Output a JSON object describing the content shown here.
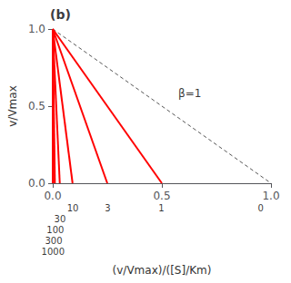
{
  "chart_data": {
    "type": "line",
    "title": "(b)",
    "xlabel": "(v/Vmax)/([S]/Km)",
    "ylabel": "v/Vmax",
    "xlim": [
      0,
      1.0
    ],
    "ylim": [
      0,
      1.0
    ],
    "xticks": [
      {
        "value": 0,
        "label": "0.0"
      },
      {
        "value": 0.5,
        "label": "0.5"
      },
      {
        "value": 1.0,
        "label": "1.0"
      }
    ],
    "yticks": [
      {
        "value": 0,
        "label": "0.0"
      },
      {
        "value": 0.5,
        "label": "0.5"
      },
      {
        "value": 1.0,
        "label": "1.0"
      }
    ],
    "grid": false,
    "series": [
      {
        "type": "line",
        "color": "#FF0000",
        "line_style": "solid",
        "marker": "none",
        "x": [
          0.0,
          0.0
        ],
        "values": [
          1.0,
          0.0
        ]
      },
      {
        "type": "line",
        "color": "#FF0000",
        "line_style": "solid",
        "marker": "none",
        "x": [
          0.0,
          0.5
        ],
        "values": [
          1.0,
          0.0
        ]
      },
      {
        "type": "line",
        "color": "#FF0000",
        "line_style": "solid",
        "marker": "none",
        "x": [
          0.0,
          0.25
        ],
        "values": [
          1.0,
          0.0
        ]
      },
      {
        "type": "line",
        "color": "#FF0000",
        "line_style": "solid",
        "marker": "none",
        "x": [
          0.0,
          0.09090909090909091
        ],
        "values": [
          1.0,
          0.0
        ]
      },
      {
        "type": "line",
        "color": "#FF0000",
        "line_style": "solid",
        "marker": "none",
        "x": [
          0.0,
          0.03225806451612903
        ],
        "values": [
          1.0,
          0.0
        ]
      },
      {
        "type": "line",
        "color": "#FF0000",
        "line_style": "solid",
        "marker": "none",
        "x": [
          0.0,
          0.009900990099009901
        ],
        "values": [
          1.0,
          0.0
        ]
      },
      {
        "type": "line",
        "color": "#FF0000",
        "line_style": "solid",
        "marker": "none",
        "x": [
          0.0,
          0.0033222591362126247
        ],
        "values": [
          1.0,
          0.0
        ]
      },
      {
        "type": "line",
        "color": "#FF0000",
        "line_style": "solid",
        "marker": "none",
        "x": [
          0.0,
          0.000999000999000999
        ],
        "values": [
          1.0,
          0.0
        ]
      },
      {
        "type": "line",
        "color": "#555555",
        "line_style": "dashed",
        "marker": "none",
        "x": [
          0,
          1
        ],
        "values": [
          1,
          0
        ]
      }
    ],
    "annotations": [
      {
        "text": "β=1",
        "x": 0.575,
        "y": 0.58
      }
    ],
    "x_annotations": [
      {
        "text": "0",
        "x": 0.953
      },
      {
        "text": "1",
        "x": 0.498
      },
      {
        "text": "3",
        "x": 0.252
      },
      {
        "text": "10",
        "x": 0.092
      },
      {
        "text": "30",
        "x": 0.033
      },
      {
        "text": "100",
        "x": 0.012
      },
      {
        "text": "300",
        "x": 0.0043
      },
      {
        "text": "1000",
        "x": 0.0013
      }
    ]
  }
}
